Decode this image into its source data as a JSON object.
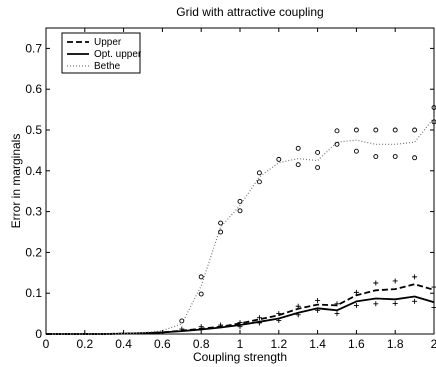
{
  "chart_data": {
    "type": "line",
    "title": "Grid with attractive coupling",
    "xlabel": "Coupling strength",
    "ylabel": "Error in marginals",
    "xlim": [
      0,
      2
    ],
    "ylim": [
      0,
      0.75
    ],
    "x_ticks": [
      0,
      0.2,
      0.4,
      0.6,
      0.8,
      1,
      1.2,
      1.4,
      1.6,
      1.8,
      2
    ],
    "x_tick_labels": [
      "0",
      "0.2",
      "0.4",
      "0.6",
      "0.8",
      "1",
      "1.2",
      "1.4",
      "1.6",
      "1.8",
      "2"
    ],
    "y_ticks": [
      0,
      0.1,
      0.2,
      0.3,
      0.4,
      0.5,
      0.6,
      0.7
    ],
    "y_tick_labels": [
      "0",
      "0.1",
      "0.2",
      "0.3",
      "0.4",
      "0.5",
      "0.6",
      "0.7"
    ],
    "grid": false,
    "legend_position": "top-left",
    "series": [
      {
        "name": "Upper",
        "style": "dashed",
        "color": "#000000",
        "x": [
          0,
          0.1,
          0.2,
          0.3,
          0.4,
          0.5,
          0.6,
          0.7,
          0.8,
          0.9,
          1.0,
          1.1,
          1.2,
          1.3,
          1.4,
          1.5,
          1.6,
          1.7,
          1.8,
          1.9,
          2.0
        ],
        "y": [
          0,
          0,
          0,
          0,
          0.001,
          0.002,
          0.004,
          0.008,
          0.013,
          0.018,
          0.026,
          0.036,
          0.046,
          0.062,
          0.072,
          0.07,
          0.095,
          0.107,
          0.11,
          0.122,
          0.108
        ]
      },
      {
        "name": "Opt. upper",
        "style": "solid",
        "color": "#000000",
        "x": [
          0,
          0.1,
          0.2,
          0.3,
          0.4,
          0.5,
          0.6,
          0.7,
          0.8,
          0.9,
          1.0,
          1.1,
          1.2,
          1.3,
          1.4,
          1.5,
          1.6,
          1.7,
          1.8,
          1.9,
          2.0
        ],
        "y": [
          0,
          0,
          0,
          0,
          0.001,
          0.002,
          0.004,
          0.007,
          0.011,
          0.016,
          0.022,
          0.03,
          0.038,
          0.052,
          0.063,
          0.058,
          0.08,
          0.087,
          0.085,
          0.092,
          0.078
        ]
      },
      {
        "name": "Bethe",
        "style": "dotted",
        "color": "#777777",
        "x": [
          0,
          0.1,
          0.2,
          0.3,
          0.4,
          0.5,
          0.6,
          0.7,
          0.8,
          0.9,
          1.0,
          1.1,
          1.2,
          1.3,
          1.4,
          1.5,
          1.6,
          1.7,
          1.8,
          1.9,
          2.0
        ],
        "y": [
          0,
          0,
          0,
          0,
          0.001,
          0.003,
          0.008,
          0.025,
          0.118,
          0.262,
          0.315,
          0.385,
          0.42,
          0.43,
          0.425,
          0.47,
          0.475,
          0.465,
          0.465,
          0.47,
          0.53
        ]
      }
    ],
    "markers": [
      {
        "series": "Upper/Opt. upper bounds",
        "symbol": "+",
        "x": [
          0.7,
          0.8,
          0.9,
          1.0,
          1.0,
          1.1,
          1.1,
          1.2,
          1.2,
          1.3,
          1.3,
          1.4,
          1.4,
          1.5,
          1.5,
          1.6,
          1.6,
          1.7,
          1.7,
          1.8,
          1.8,
          1.9,
          1.9,
          2.0,
          2.0
        ],
        "y": [
          0.012,
          0.018,
          0.022,
          0.028,
          0.018,
          0.04,
          0.027,
          0.05,
          0.033,
          0.068,
          0.047,
          0.082,
          0.058,
          0.074,
          0.05,
          0.102,
          0.07,
          0.125,
          0.074,
          0.13,
          0.075,
          0.14,
          0.08,
          0.115,
          0.065
        ]
      },
      {
        "series": "Bethe bounds",
        "symbol": "o",
        "x": [
          0.7,
          0.8,
          0.8,
          0.9,
          0.9,
          1.0,
          1.0,
          1.1,
          1.1,
          1.2,
          1.3,
          1.3,
          1.4,
          1.4,
          1.5,
          1.5,
          1.6,
          1.6,
          1.7,
          1.7,
          1.8,
          1.8,
          1.9,
          1.9,
          2.0,
          2.0
        ],
        "y": [
          0.032,
          0.14,
          0.098,
          0.272,
          0.25,
          0.325,
          0.302,
          0.395,
          0.373,
          0.428,
          0.455,
          0.415,
          0.445,
          0.408,
          0.498,
          0.465,
          0.5,
          0.448,
          0.5,
          0.435,
          0.5,
          0.435,
          0.5,
          0.432,
          0.555,
          0.52
        ]
      }
    ]
  }
}
